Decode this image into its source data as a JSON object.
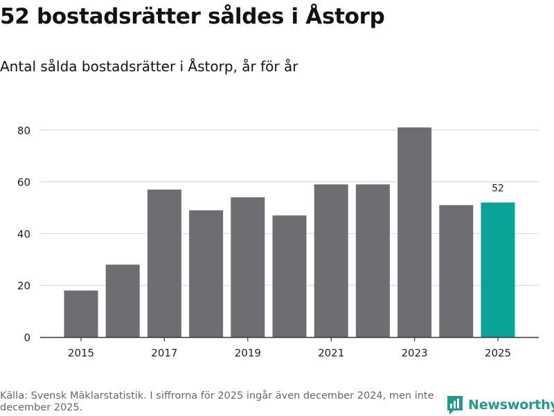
{
  "header": {
    "title": "52 bostadsrätter såldes i Åstorp",
    "subtitle": "Antal sålda bostadsrätter i Åstorp, år för år"
  },
  "footer": {
    "source": "Källa: Svensk Mäklarstatistik. I siffrorna för 2025 ingår även december 2024, men inte december 2025.",
    "brand": "Newsworthy"
  },
  "colors": {
    "bar": "#6e6d72",
    "highlight": "#0aa398",
    "grid": "#dcdcdc",
    "axis": "#333333",
    "brand": "#1f9a8c"
  },
  "chart_data": {
    "type": "bar",
    "title": "Antal sålda bostadsrätter i Åstorp, år för år",
    "xlabel": "",
    "ylabel": "",
    "categories": [
      "2015",
      "2016",
      "2017",
      "2018",
      "2019",
      "2020",
      "2021",
      "2022",
      "2023",
      "2024",
      "2025"
    ],
    "values": [
      18,
      28,
      57,
      49,
      54,
      47,
      59,
      59,
      81,
      51,
      52
    ],
    "x_tick_labels": [
      "2015",
      "2017",
      "2019",
      "2021",
      "2023",
      "2025"
    ],
    "y_ticks": [
      0,
      20,
      40,
      60,
      80
    ],
    "ylim": [
      0,
      80.5
    ],
    "highlight_category": "2025",
    "data_labels": [
      {
        "category": "2025",
        "text": "52"
      }
    ],
    "grid": true
  }
}
